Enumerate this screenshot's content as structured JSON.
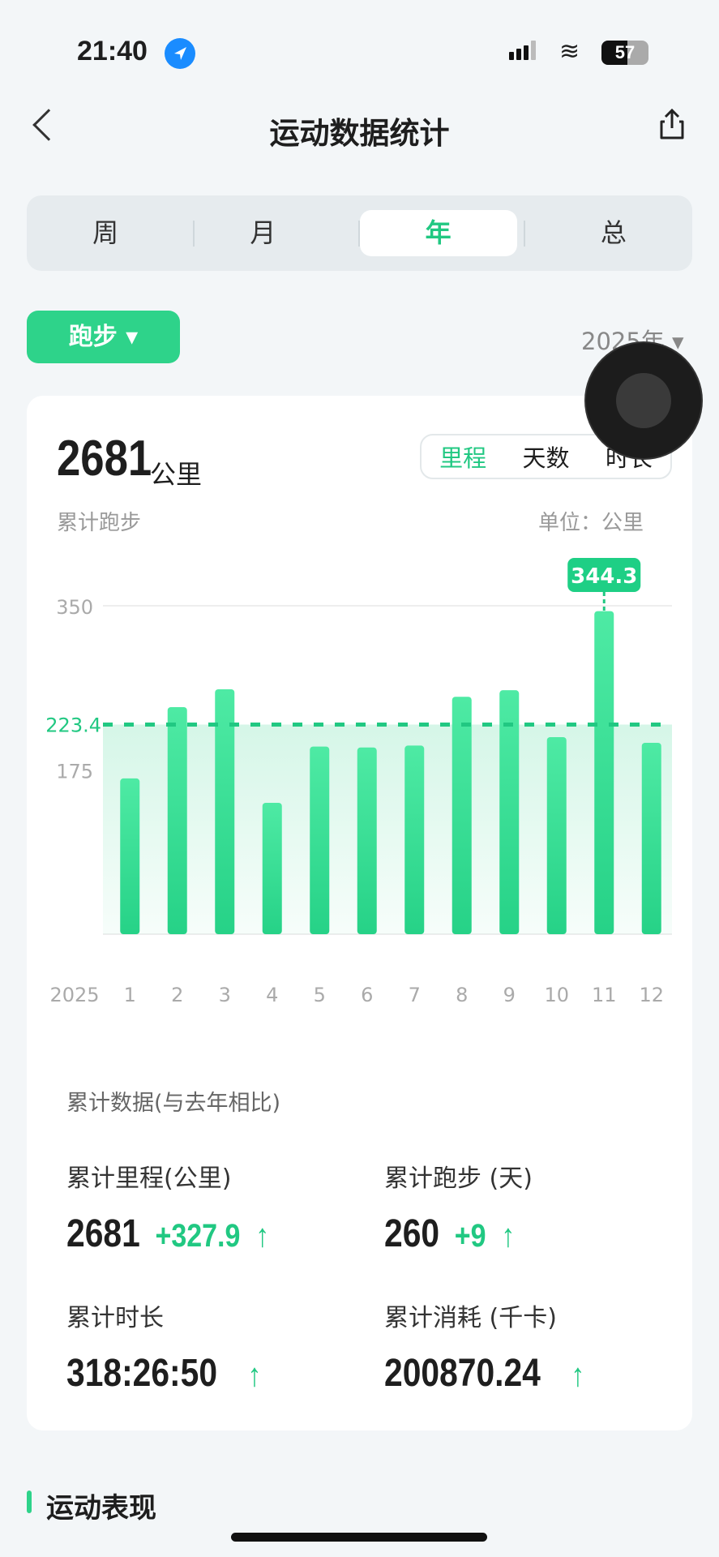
{
  "status": {
    "time": "21:40",
    "battery": "57",
    "location_icon": "location-arrow-icon"
  },
  "nav": {
    "title": "运动数据统计",
    "back_icon": "chevron-left-icon",
    "share_icon": "share-icon"
  },
  "tabs": [
    {
      "label": "周"
    },
    {
      "label": "月"
    },
    {
      "label": "年",
      "selected": true
    },
    {
      "label": "总"
    }
  ],
  "sport_select": {
    "label": "跑步 ▾"
  },
  "year_select": {
    "label": "2025年 ▾"
  },
  "summary": {
    "total": "2681",
    "unit": "公里",
    "caption": "累计跑步",
    "unit_note": "单位：公里"
  },
  "metric_toggle": [
    {
      "label": "里程",
      "selected": true
    },
    {
      "label": "天数"
    },
    {
      "label": "时长"
    }
  ],
  "chart_data": {
    "type": "bar",
    "categories": [
      "1",
      "2",
      "3",
      "4",
      "5",
      "6",
      "7",
      "8",
      "9",
      "10",
      "11",
      "12"
    ],
    "x_prefix_label": "2025",
    "values": [
      166,
      242,
      261,
      140,
      200,
      199,
      201,
      253,
      260,
      210,
      344.3,
      204
    ],
    "ylim": [
      0,
      350
    ],
    "yticks": [
      "350",
      "175"
    ],
    "average": {
      "value": 223.4,
      "label": "223.4"
    },
    "highlight": {
      "index": 10,
      "label": "344.3"
    },
    "colors": {
      "bar": "#2ed38a",
      "average": "#21c882"
    },
    "grid": true
  },
  "cumulative": {
    "heading": "累计数据(与去年相比)",
    "items": [
      {
        "label": "累计里程(公里)",
        "value": "2681",
        "delta": "+327.9",
        "arrow": "↑"
      },
      {
        "label": "累计跑步 (天)",
        "value": "260",
        "delta": "+9",
        "arrow": "↑"
      },
      {
        "label": "累计时长",
        "value": "318:26:50",
        "delta": "",
        "arrow": "↑"
      },
      {
        "label": "累计消耗 (千卡)",
        "value": "200870.24",
        "delta": "",
        "arrow": "↑"
      }
    ]
  },
  "section": {
    "title": "运动表现"
  }
}
